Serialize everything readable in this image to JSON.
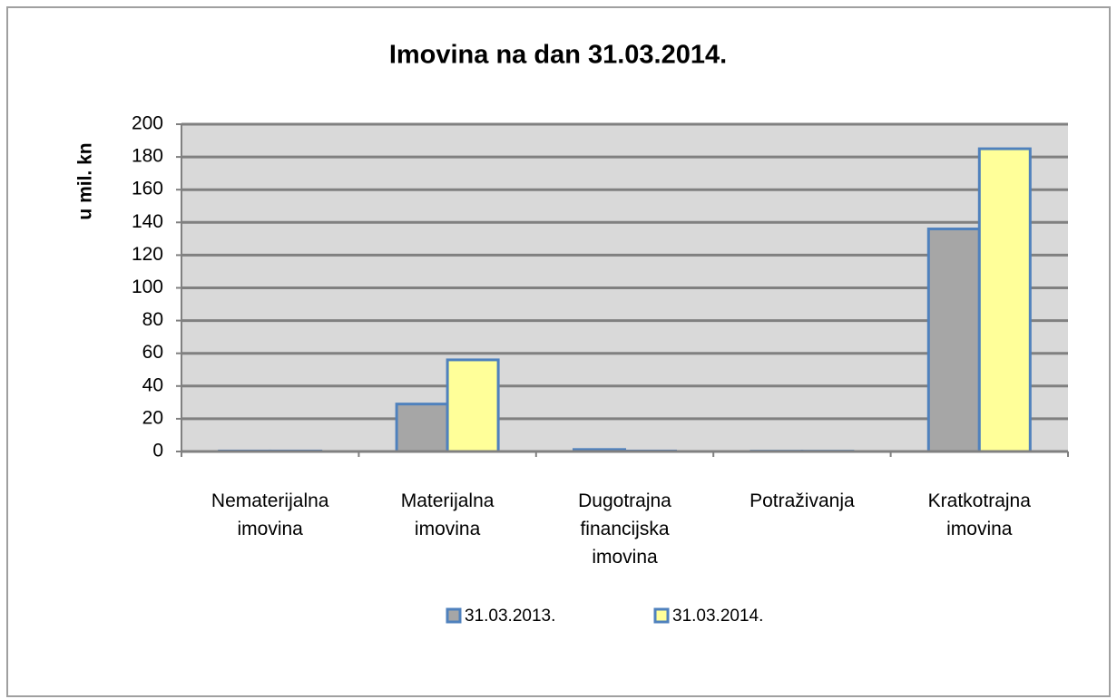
{
  "chart_data": {
    "type": "bar",
    "title": "Imovina na dan 31.03.2014.",
    "y_label": "u mil. kn",
    "categories": [
      "Nematerijalna imovina",
      "Materijalna imovina",
      "Dugotrajna financijska imovina",
      "Potraživanja",
      "Kratkotrajna imovina"
    ],
    "series": [
      {
        "name": "31.03.2013.",
        "color": "#a6a6a6",
        "values": [
          0.3,
          29,
          1.2,
          0.2,
          136
        ]
      },
      {
        "name": "31.03.2014.",
        "color": "#ffff99",
        "values": [
          0.3,
          56,
          0.3,
          0.2,
          185
        ]
      }
    ],
    "edge_color": "#4f81bd",
    "ylim": [
      0,
      200
    ],
    "yticks": [
      0,
      20,
      40,
      60,
      80,
      100,
      120,
      140,
      160,
      180,
      200
    ],
    "grid": true,
    "legend": "bottom"
  }
}
